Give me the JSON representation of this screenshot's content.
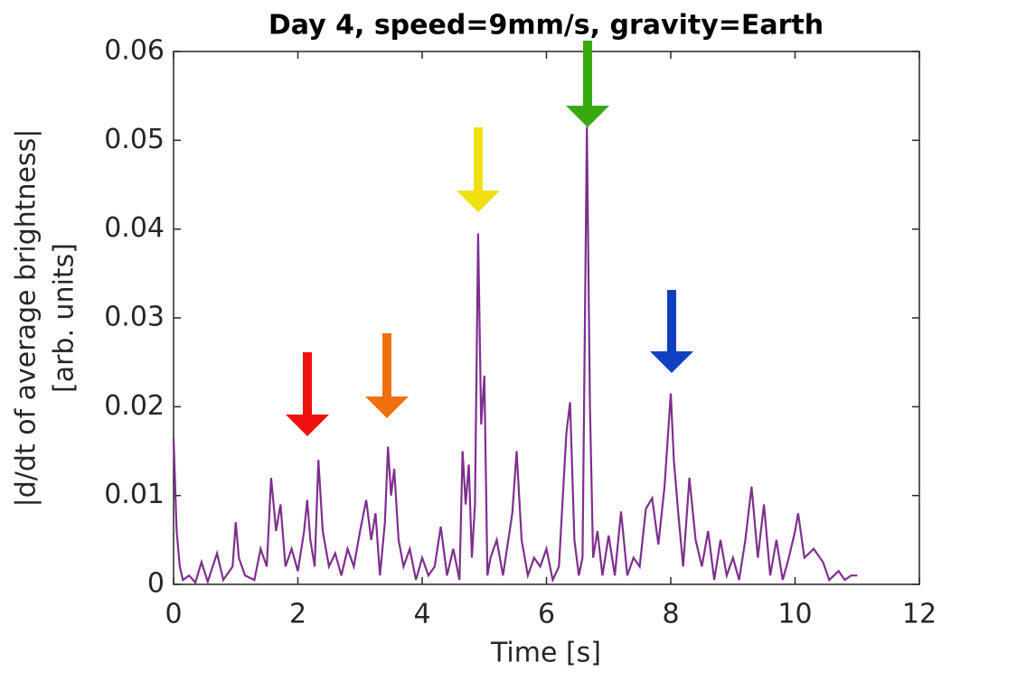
{
  "chart_data": {
    "type": "line",
    "title": "Day 4, speed=9mm/s, gravity=Earth",
    "xlabel": "Time [s]",
    "ylabel": [
      "|d/dt of average brightness|",
      "[arb. units]"
    ],
    "xlim": [
      0,
      12
    ],
    "xticks": [
      0,
      2,
      4,
      6,
      8,
      10,
      12
    ],
    "ylim": [
      0,
      0.06
    ],
    "yticks": [
      0,
      0.01,
      0.02,
      0.03,
      0.04,
      0.05,
      0.06
    ],
    "series": [
      {
        "color": "#7e2f8e",
        "x": [
          0,
          0.05,
          0.1,
          0.15,
          0.25,
          0.35,
          0.45,
          0.55,
          0.7,
          0.8,
          0.95,
          1.0,
          1.05,
          1.15,
          1.3,
          1.4,
          1.5,
          1.57,
          1.65,
          1.72,
          1.8,
          1.9,
          2.0,
          2.1,
          2.15,
          2.2,
          2.27,
          2.33,
          2.4,
          2.5,
          2.6,
          2.7,
          2.8,
          2.9,
          3.0,
          3.1,
          3.18,
          3.25,
          3.32,
          3.4,
          3.45,
          3.5,
          3.55,
          3.62,
          3.7,
          3.8,
          3.9,
          4.0,
          4.1,
          4.2,
          4.3,
          4.4,
          4.5,
          4.6,
          4.65,
          4.7,
          4.75,
          4.8,
          4.85,
          4.9,
          4.95,
          5.0,
          5.05,
          5.1,
          5.2,
          5.3,
          5.45,
          5.52,
          5.6,
          5.7,
          5.8,
          5.9,
          6.0,
          6.1,
          6.2,
          6.32,
          6.38,
          6.45,
          6.52,
          6.58,
          6.65,
          6.7,
          6.75,
          6.82,
          6.9,
          7.0,
          7.1,
          7.2,
          7.3,
          7.4,
          7.5,
          7.6,
          7.7,
          7.8,
          7.9,
          8.0,
          8.05,
          8.12,
          8.2,
          8.3,
          8.4,
          8.5,
          8.6,
          8.7,
          8.8,
          8.9,
          9.0,
          9.1,
          9.2,
          9.3,
          9.4,
          9.5,
          9.6,
          9.7,
          9.8,
          9.9,
          10.0,
          10.05,
          10.15,
          10.3,
          10.45,
          10.55,
          10.7,
          10.8,
          10.9,
          11.0
        ],
        "values": [
          0.0165,
          0.006,
          0.002,
          0.0005,
          0.001,
          0.0002,
          0.0025,
          0.0003,
          0.0035,
          0.0005,
          0.002,
          0.007,
          0.003,
          0.001,
          0.0005,
          0.004,
          0.002,
          0.012,
          0.006,
          0.009,
          0.002,
          0.004,
          0.0015,
          0.006,
          0.0095,
          0.005,
          0.002,
          0.014,
          0.006,
          0.002,
          0.0035,
          0.001,
          0.004,
          0.002,
          0.006,
          0.0095,
          0.005,
          0.008,
          0.001,
          0.007,
          0.0155,
          0.01,
          0.013,
          0.005,
          0.002,
          0.004,
          0.0005,
          0.003,
          0.001,
          0.002,
          0.0065,
          0.001,
          0.004,
          0.0005,
          0.015,
          0.009,
          0.0135,
          0.003,
          0.009,
          0.0395,
          0.018,
          0.0235,
          0.001,
          0.003,
          0.005,
          0.001,
          0.008,
          0.015,
          0.005,
          0.001,
          0.003,
          0.002,
          0.004,
          0.0005,
          0.002,
          0.017,
          0.0205,
          0.005,
          0.001,
          0.003,
          0.0515,
          0.02,
          0.003,
          0.006,
          0.001,
          0.0055,
          0.001,
          0.0082,
          0.001,
          0.003,
          0.002,
          0.0085,
          0.0097,
          0.0045,
          0.011,
          0.0215,
          0.014,
          0.008,
          0.002,
          0.012,
          0.005,
          0.002,
          0.006,
          0.0005,
          0.005,
          0.001,
          0.003,
          0.0005,
          0.005,
          0.011,
          0.003,
          0.009,
          0.001,
          0.005,
          0.0005,
          0.003,
          0.006,
          0.008,
          0.003,
          0.004,
          0.0025,
          0.0005,
          0.0015,
          0.0005,
          0.001,
          0.001
        ]
      }
    ]
  }
}
